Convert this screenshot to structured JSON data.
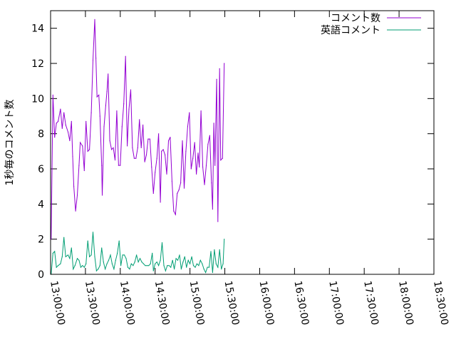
{
  "chart_data": {
    "type": "line",
    "title": "",
    "xlabel": "",
    "ylabel": "1秒毎のコメント数",
    "ylim": [
      0,
      15
    ],
    "yticks": [
      0,
      2,
      4,
      6,
      8,
      10,
      12,
      14
    ],
    "xlim": [
      "13:00:00",
      "18:30:00"
    ],
    "xticks": [
      "13:00:00",
      "13:30:00",
      "14:00:00",
      "14:30:00",
      "15:00:00",
      "15:30:00",
      "16:00:00",
      "16:30:00",
      "17:00:00",
      "17:30:00",
      "18:00:00",
      "18:30:00"
    ],
    "grid": false,
    "legend_position": "top-right",
    "series": [
      {
        "name": "コメント数",
        "color": "#9400d3",
        "points": [
          [
            "13:00:30",
            2.0
          ],
          [
            "13:02:00",
            10.2
          ],
          [
            "13:03:30",
            7.8
          ],
          [
            "13:05:00",
            8.6
          ],
          [
            "13:06:30",
            8.7
          ],
          [
            "13:08:30",
            9.4
          ],
          [
            "13:10:00",
            8.3
          ],
          [
            "13:11:30",
            9.2
          ],
          [
            "13:13:00",
            8.5
          ],
          [
            "13:15:00",
            8.1
          ],
          [
            "13:16:30",
            7.6
          ],
          [
            "13:18:00",
            8.7
          ],
          [
            "13:19:00",
            6.7
          ],
          [
            "13:20:00",
            5.0
          ],
          [
            "13:21:30",
            3.6
          ],
          [
            "13:23:00",
            4.5
          ],
          [
            "13:24:30",
            6.2
          ],
          [
            "13:25:30",
            7.5
          ],
          [
            "13:27:30",
            7.3
          ],
          [
            "13:29:00",
            5.9
          ],
          [
            "13:30:30",
            8.7
          ],
          [
            "13:32:00",
            7.0
          ],
          [
            "13:33:30",
            7.1
          ],
          [
            "13:35:00",
            9.2
          ],
          [
            "13:36:30",
            12.2
          ],
          [
            "13:38:00",
            14.5
          ],
          [
            "13:39:00",
            12.3
          ],
          [
            "13:40:00",
            10.1
          ],
          [
            "13:41:30",
            10.2
          ],
          [
            "13:42:30",
            9.0
          ],
          [
            "13:44:00",
            6.2
          ],
          [
            "13:44:30",
            4.5
          ],
          [
            "13:46:00",
            8.4
          ],
          [
            "13:47:30",
            9.6
          ],
          [
            "13:48:30",
            10.4
          ],
          [
            "13:49:30",
            11.4
          ],
          [
            "13:51:00",
            7.6
          ],
          [
            "13:52:30",
            7.1
          ],
          [
            "13:54:00",
            7.2
          ],
          [
            "13:55:30",
            6.5
          ],
          [
            "13:57:00",
            9.3
          ],
          [
            "13:58:30",
            6.2
          ],
          [
            "14:00:00",
            6.2
          ],
          [
            "14:01:30",
            8.4
          ],
          [
            "14:03:00",
            9.7
          ],
          [
            "14:04:30",
            12.4
          ],
          [
            "14:06:00",
            7.3
          ],
          [
            "14:07:30",
            9.4
          ],
          [
            "14:09:00",
            10.5
          ],
          [
            "14:10:30",
            7.2
          ],
          [
            "14:12:00",
            6.6
          ],
          [
            "14:13:30",
            6.6
          ],
          [
            "14:15:00",
            7.2
          ],
          [
            "14:16:30",
            8.8
          ],
          [
            "14:18:00",
            7.2
          ],
          [
            "14:19:30",
            8.5
          ],
          [
            "14:21:00",
            6.4
          ],
          [
            "14:22:30",
            6.8
          ],
          [
            "14:24:00",
            7.7
          ],
          [
            "14:25:30",
            7.7
          ],
          [
            "14:27:00",
            6.1
          ],
          [
            "14:28:30",
            4.6
          ],
          [
            "14:30:00",
            5.8
          ],
          [
            "14:31:30",
            6.6
          ],
          [
            "14:33:00",
            8.0
          ],
          [
            "14:34:30",
            4.1
          ],
          [
            "14:35:30",
            7.0
          ],
          [
            "14:37:00",
            7.1
          ],
          [
            "14:38:30",
            6.8
          ],
          [
            "14:40:00",
            5.7
          ],
          [
            "14:41:30",
            7.6
          ],
          [
            "14:43:00",
            7.8
          ],
          [
            "14:44:30",
            5.3
          ],
          [
            "14:46:00",
            3.6
          ],
          [
            "14:47:30",
            3.4
          ],
          [
            "14:49:00",
            4.6
          ],
          [
            "14:50:30",
            4.8
          ],
          [
            "14:52:00",
            5.2
          ],
          [
            "14:53:30",
            7.6
          ],
          [
            "14:55:00",
            4.9
          ],
          [
            "14:56:30",
            7.0
          ],
          [
            "14:58:00",
            8.4
          ],
          [
            "14:59:30",
            9.2
          ],
          [
            "15:01:00",
            6.0
          ],
          [
            "15:02:30",
            6.6
          ],
          [
            "15:04:00",
            7.5
          ],
          [
            "15:05:30",
            5.7
          ],
          [
            "15:07:00",
            6.9
          ],
          [
            "15:08:00",
            6.1
          ],
          [
            "15:09:30",
            9.3
          ],
          [
            "15:11:00",
            6.1
          ],
          [
            "15:12:30",
            5.1
          ],
          [
            "15:14:00",
            6.2
          ],
          [
            "15:15:30",
            7.4
          ],
          [
            "15:17:00",
            7.9
          ],
          [
            "15:18:30",
            5.2
          ],
          [
            "15:19:30",
            3.7
          ],
          [
            "15:20:30",
            8.6
          ],
          [
            "15:21:30",
            6.2
          ],
          [
            "15:23:00",
            11.1
          ],
          [
            "15:24:00",
            3.0
          ],
          [
            "15:25:30",
            11.7
          ],
          [
            "15:26:30",
            6.5
          ],
          [
            "15:28:00",
            6.6
          ],
          [
            "15:29:30",
            12.0
          ]
        ]
      },
      {
        "name": "英語コメント",
        "color": "#009e73",
        "points": [
          [
            "13:00:30",
            0.0
          ],
          [
            "13:02:00",
            1.2
          ],
          [
            "13:03:30",
            1.3
          ],
          [
            "13:05:00",
            0.4
          ],
          [
            "13:06:30",
            0.5
          ],
          [
            "13:08:30",
            0.6
          ],
          [
            "13:10:00",
            1.0
          ],
          [
            "13:11:30",
            2.1
          ],
          [
            "13:13:00",
            1.0
          ],
          [
            "13:15:00",
            1.1
          ],
          [
            "13:16:30",
            0.9
          ],
          [
            "13:18:00",
            1.5
          ],
          [
            "13:19:30",
            0.3
          ],
          [
            "13:21:00",
            0.5
          ],
          [
            "13:23:00",
            0.9
          ],
          [
            "13:24:30",
            0.8
          ],
          [
            "13:26:00",
            0.4
          ],
          [
            "13:27:30",
            0.5
          ],
          [
            "13:29:00",
            0.4
          ],
          [
            "13:30:30",
            0.6
          ],
          [
            "13:32:00",
            1.9
          ],
          [
            "13:33:30",
            1.0
          ],
          [
            "13:35:00",
            1.1
          ],
          [
            "13:36:30",
            2.4
          ],
          [
            "13:38:00",
            1.0
          ],
          [
            "13:39:30",
            0.2
          ],
          [
            "13:41:00",
            0.3
          ],
          [
            "13:42:30",
            0.5
          ],
          [
            "13:44:00",
            1.5
          ],
          [
            "13:45:30",
            0.7
          ],
          [
            "13:47:00",
            0.3
          ],
          [
            "13:48:30",
            0.6
          ],
          [
            "13:50:00",
            0.8
          ],
          [
            "13:51:30",
            1.1
          ],
          [
            "13:53:00",
            0.6
          ],
          [
            "13:54:30",
            0.3
          ],
          [
            "13:56:00",
            0.8
          ],
          [
            "13:57:30",
            1.2
          ],
          [
            "13:59:00",
            1.9
          ],
          [
            "14:00:30",
            0.5
          ],
          [
            "14:02:00",
            1.1
          ],
          [
            "14:03:30",
            1.1
          ],
          [
            "14:05:00",
            0.9
          ],
          [
            "14:06:30",
            0.4
          ],
          [
            "14:08:00",
            0.3
          ],
          [
            "14:09:30",
            0.6
          ],
          [
            "14:11:00",
            0.5
          ],
          [
            "14:12:30",
            0.7
          ],
          [
            "14:14:00",
            1.1
          ],
          [
            "14:15:30",
            0.7
          ],
          [
            "14:17:00",
            0.9
          ],
          [
            "14:18:30",
            0.7
          ],
          [
            "14:20:00",
            0.6
          ],
          [
            "14:21:30",
            0.5
          ],
          [
            "14:23:00",
            0.5
          ],
          [
            "14:24:30",
            0.5
          ],
          [
            "14:26:00",
            0.6
          ],
          [
            "14:27:30",
            1.2
          ],
          [
            "14:28:30",
            0.2
          ],
          [
            "14:30:00",
            0.6
          ],
          [
            "14:31:30",
            0.7
          ],
          [
            "14:33:00",
            0.5
          ],
          [
            "14:34:30",
            0.8
          ],
          [
            "14:36:00",
            1.8
          ],
          [
            "14:37:30",
            0.5
          ],
          [
            "14:39:00",
            0.2
          ],
          [
            "14:40:30",
            0.5
          ],
          [
            "14:42:00",
            0.5
          ],
          [
            "14:43:30",
            0.4
          ],
          [
            "14:45:00",
            0.8
          ],
          [
            "14:46:30",
            0.3
          ],
          [
            "14:48:00",
            0.9
          ],
          [
            "14:49:30",
            0.8
          ],
          [
            "14:51:00",
            1.1
          ],
          [
            "14:52:30",
            0.3
          ],
          [
            "14:54:00",
            0.7
          ],
          [
            "14:55:30",
            1.0
          ],
          [
            "14:57:00",
            0.4
          ],
          [
            "14:58:30",
            0.8
          ],
          [
            "15:00:00",
            0.6
          ],
          [
            "15:01:30",
            1.0
          ],
          [
            "15:03:00",
            0.5
          ],
          [
            "15:04:30",
            0.4
          ],
          [
            "15:06:00",
            0.6
          ],
          [
            "15:07:30",
            0.5
          ],
          [
            "15:09:00",
            0.8
          ],
          [
            "15:10:30",
            0.6
          ],
          [
            "15:12:00",
            0.3
          ],
          [
            "15:13:30",
            0.1
          ],
          [
            "15:15:00",
            0.4
          ],
          [
            "15:16:30",
            0.4
          ],
          [
            "15:18:00",
            1.3
          ],
          [
            "15:19:30",
            0.1
          ],
          [
            "15:21:00",
            1.4
          ],
          [
            "15:22:30",
            0.6
          ],
          [
            "15:24:00",
            0.4
          ],
          [
            "15:25:30",
            1.4
          ],
          [
            "15:27:00",
            0.3
          ],
          [
            "15:28:30",
            0.6
          ],
          [
            "15:29:30",
            2.0
          ]
        ]
      }
    ]
  }
}
